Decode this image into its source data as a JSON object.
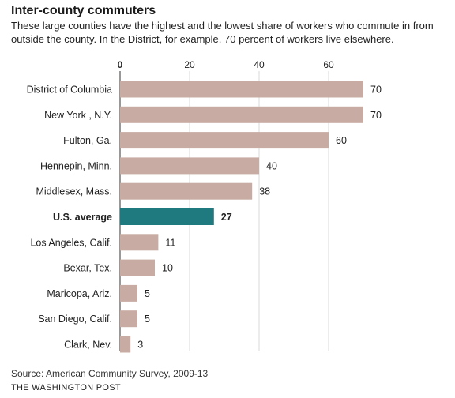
{
  "chart_data": {
    "type": "bar",
    "orientation": "horizontal",
    "title": "Inter-county commuters",
    "subtitle": "These large counties have the highest and the lowest share of workers who commute in from outside the county. In the District, for example, 70 percent of workers live elsewhere.",
    "categories": [
      "District of Columbia",
      "New York , N.Y.",
      "Fulton, Ga.",
      "Hennepin, Minn.",
      "Middlesex, Mass.",
      "U.S. average",
      "Los Angeles, Calif.",
      "Bexar, Tex.",
      "Maricopa, Ariz.",
      "San Diego, Calif.",
      "Clark, Nev."
    ],
    "values": [
      70,
      70,
      60,
      40,
      38,
      27,
      11,
      10,
      5,
      5,
      3
    ],
    "highlight": "U.S. average",
    "ticks": [
      0,
      20,
      40,
      60
    ],
    "xlim": [
      0,
      70
    ],
    "grid": true,
    "colors": {
      "bar": "#c8aca3",
      "highlight": "#1f7a80",
      "grid": "#d9d9d9"
    }
  },
  "footer": {
    "source": "Source: American Community Survey, 2009-13",
    "credit": "THE WASHINGTON POST"
  }
}
